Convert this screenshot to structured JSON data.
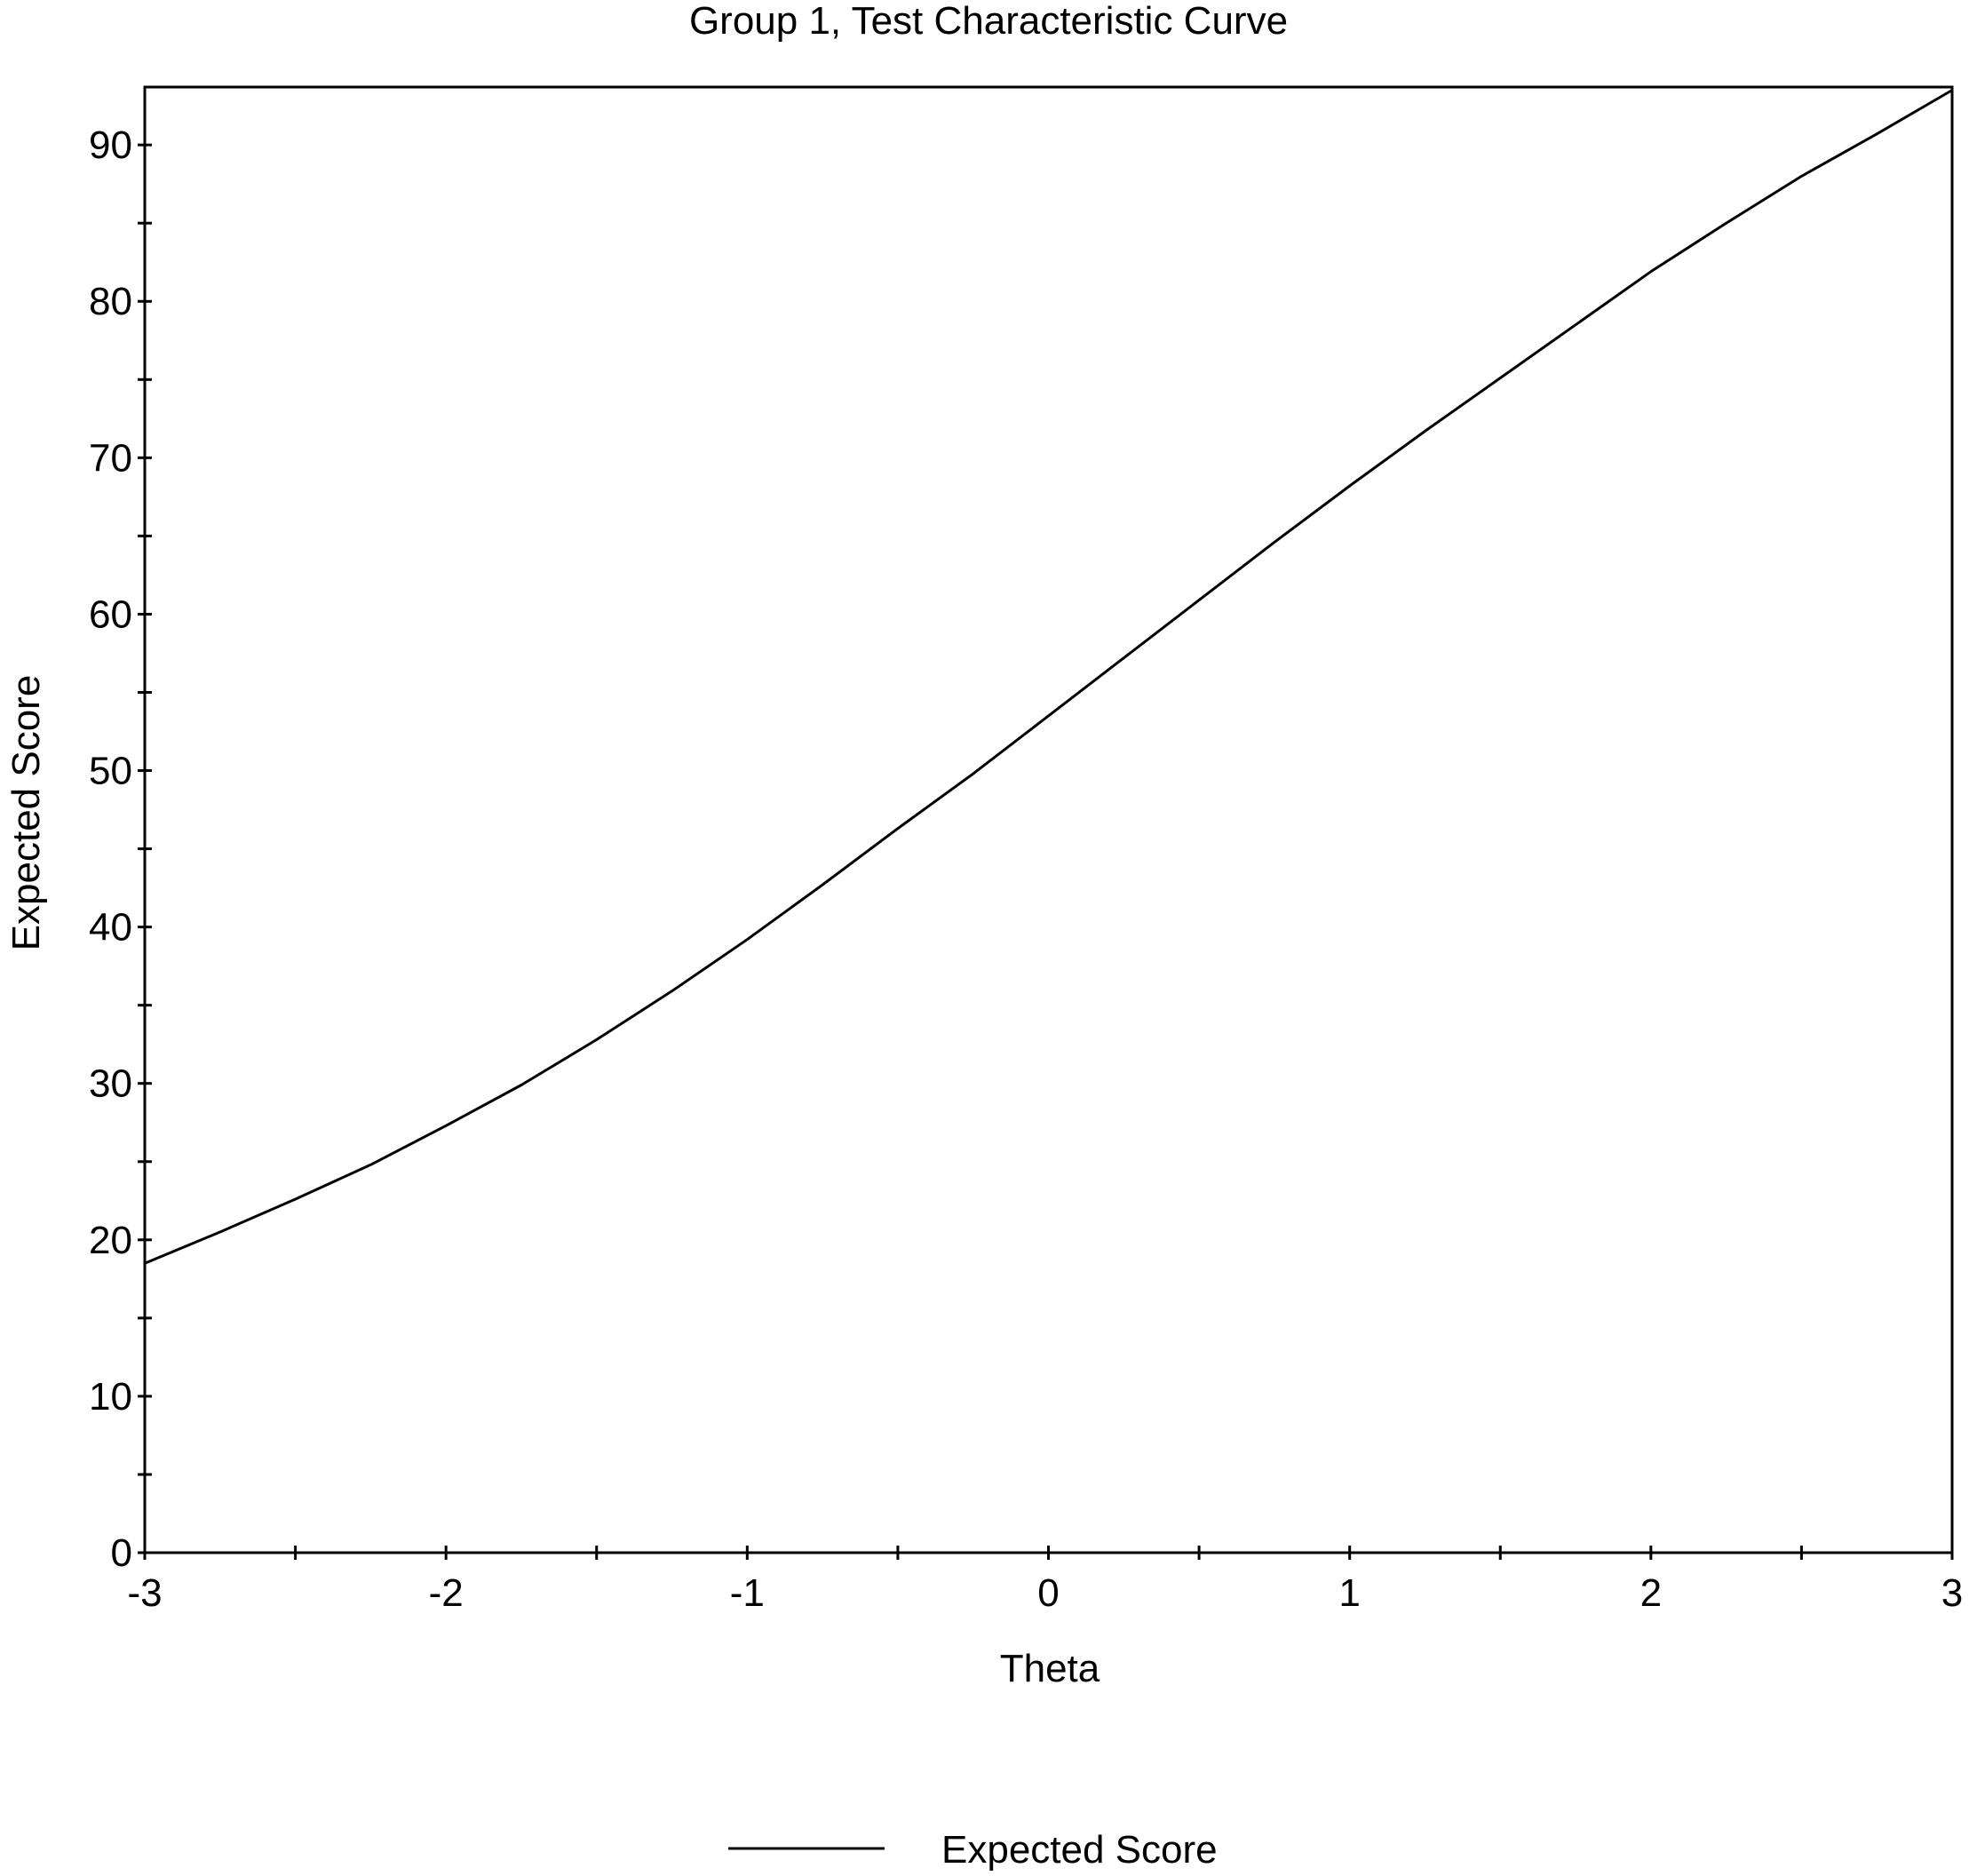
{
  "chart_data": {
    "type": "line",
    "title": "Group 1, Test Characteristic Curve",
    "xlabel": "Theta",
    "ylabel": "Expected Score",
    "xlim": [
      -3,
      3
    ],
    "ylim": [
      0,
      93.7
    ],
    "x_ticks": [
      -3,
      -2,
      -1,
      0,
      1,
      2,
      3
    ],
    "y_ticks": [
      0,
      10,
      20,
      30,
      40,
      50,
      60,
      70,
      80,
      90
    ],
    "grid": false,
    "legend_placement": "bottom-center",
    "colors": {
      "line": "#000000",
      "ylabel": "#7a4a00",
      "frame": "#000000"
    },
    "series": [
      {
        "name": "Expected Score",
        "x": [
          -3.0,
          -2.75,
          -2.5,
          -2.25,
          -2.0,
          -1.75,
          -1.5,
          -1.25,
          -1.0,
          -0.75,
          -0.5,
          -0.25,
          0.0,
          0.25,
          0.5,
          0.75,
          1.0,
          1.25,
          1.5,
          1.75,
          2.0,
          2.25,
          2.5,
          2.75,
          3.0
        ],
        "y": [
          18.5,
          20.5,
          22.6,
          24.8,
          27.3,
          29.9,
          32.8,
          35.9,
          39.2,
          42.7,
          46.3,
          49.8,
          53.5,
          57.2,
          60.9,
          64.6,
          68.2,
          71.7,
          75.1,
          78.5,
          81.9,
          85.0,
          88.0,
          90.7,
          93.5
        ]
      }
    ]
  }
}
